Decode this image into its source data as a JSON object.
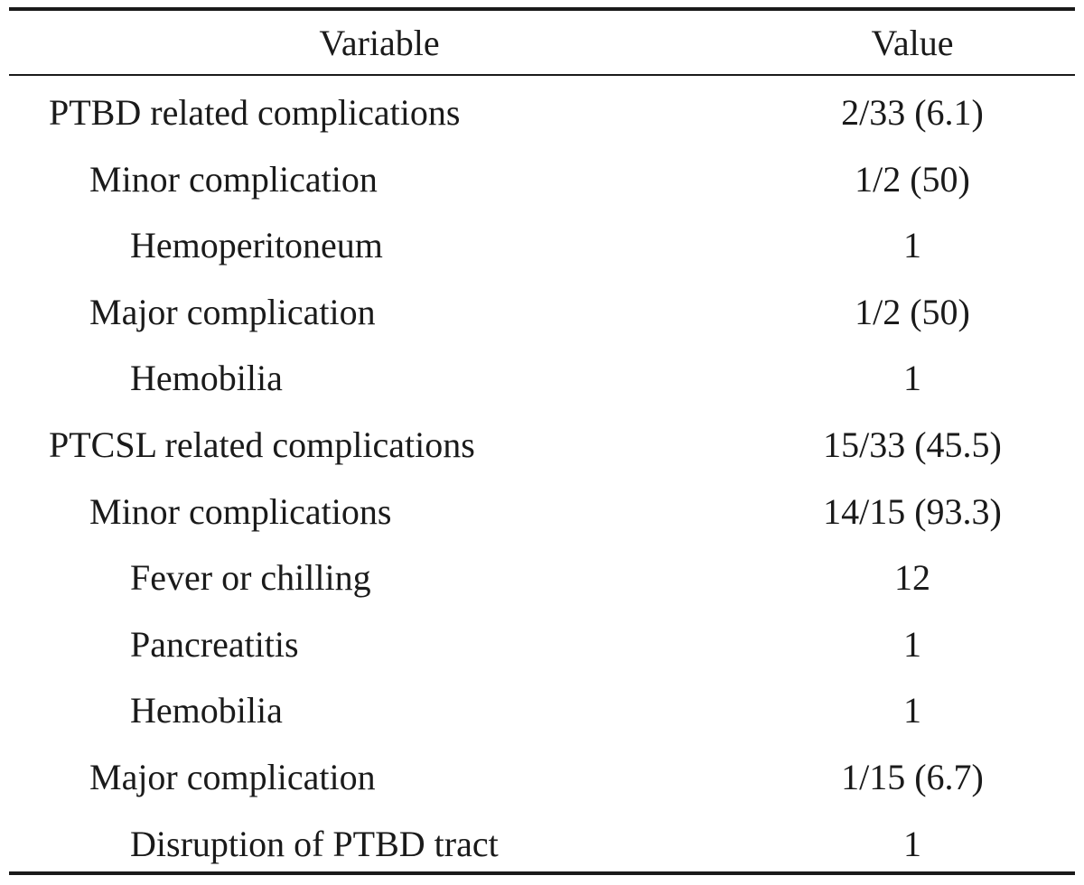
{
  "table": {
    "headers": {
      "variable": "Variable",
      "value": "Value"
    },
    "rows": [
      {
        "variable": "PTBD related complications",
        "value": "2/33 (6.1)",
        "level": 0
      },
      {
        "variable": "Minor complication",
        "value": "1/2 (50)",
        "level": 1
      },
      {
        "variable": "Hemoperitoneum",
        "value": "1",
        "level": 2
      },
      {
        "variable": "Major complication",
        "value": "1/2 (50)",
        "level": 1
      },
      {
        "variable": "Hemobilia",
        "value": "1",
        "level": 2
      },
      {
        "variable": "PTCSL related complications",
        "value": "15/33 (45.5)",
        "level": 0
      },
      {
        "variable": "Minor complications",
        "value": "14/15 (93.3)",
        "level": 1
      },
      {
        "variable": "Fever or chilling",
        "value": "12",
        "level": 2
      },
      {
        "variable": "Pancreatitis",
        "value": "1",
        "level": 2
      },
      {
        "variable": "Hemobilia",
        "value": "1",
        "level": 2
      },
      {
        "variable": "Major complication",
        "value": "1/15 (6.7)",
        "level": 1
      },
      {
        "variable": "Disruption of PTBD tract",
        "value": "1",
        "level": 2
      }
    ]
  }
}
